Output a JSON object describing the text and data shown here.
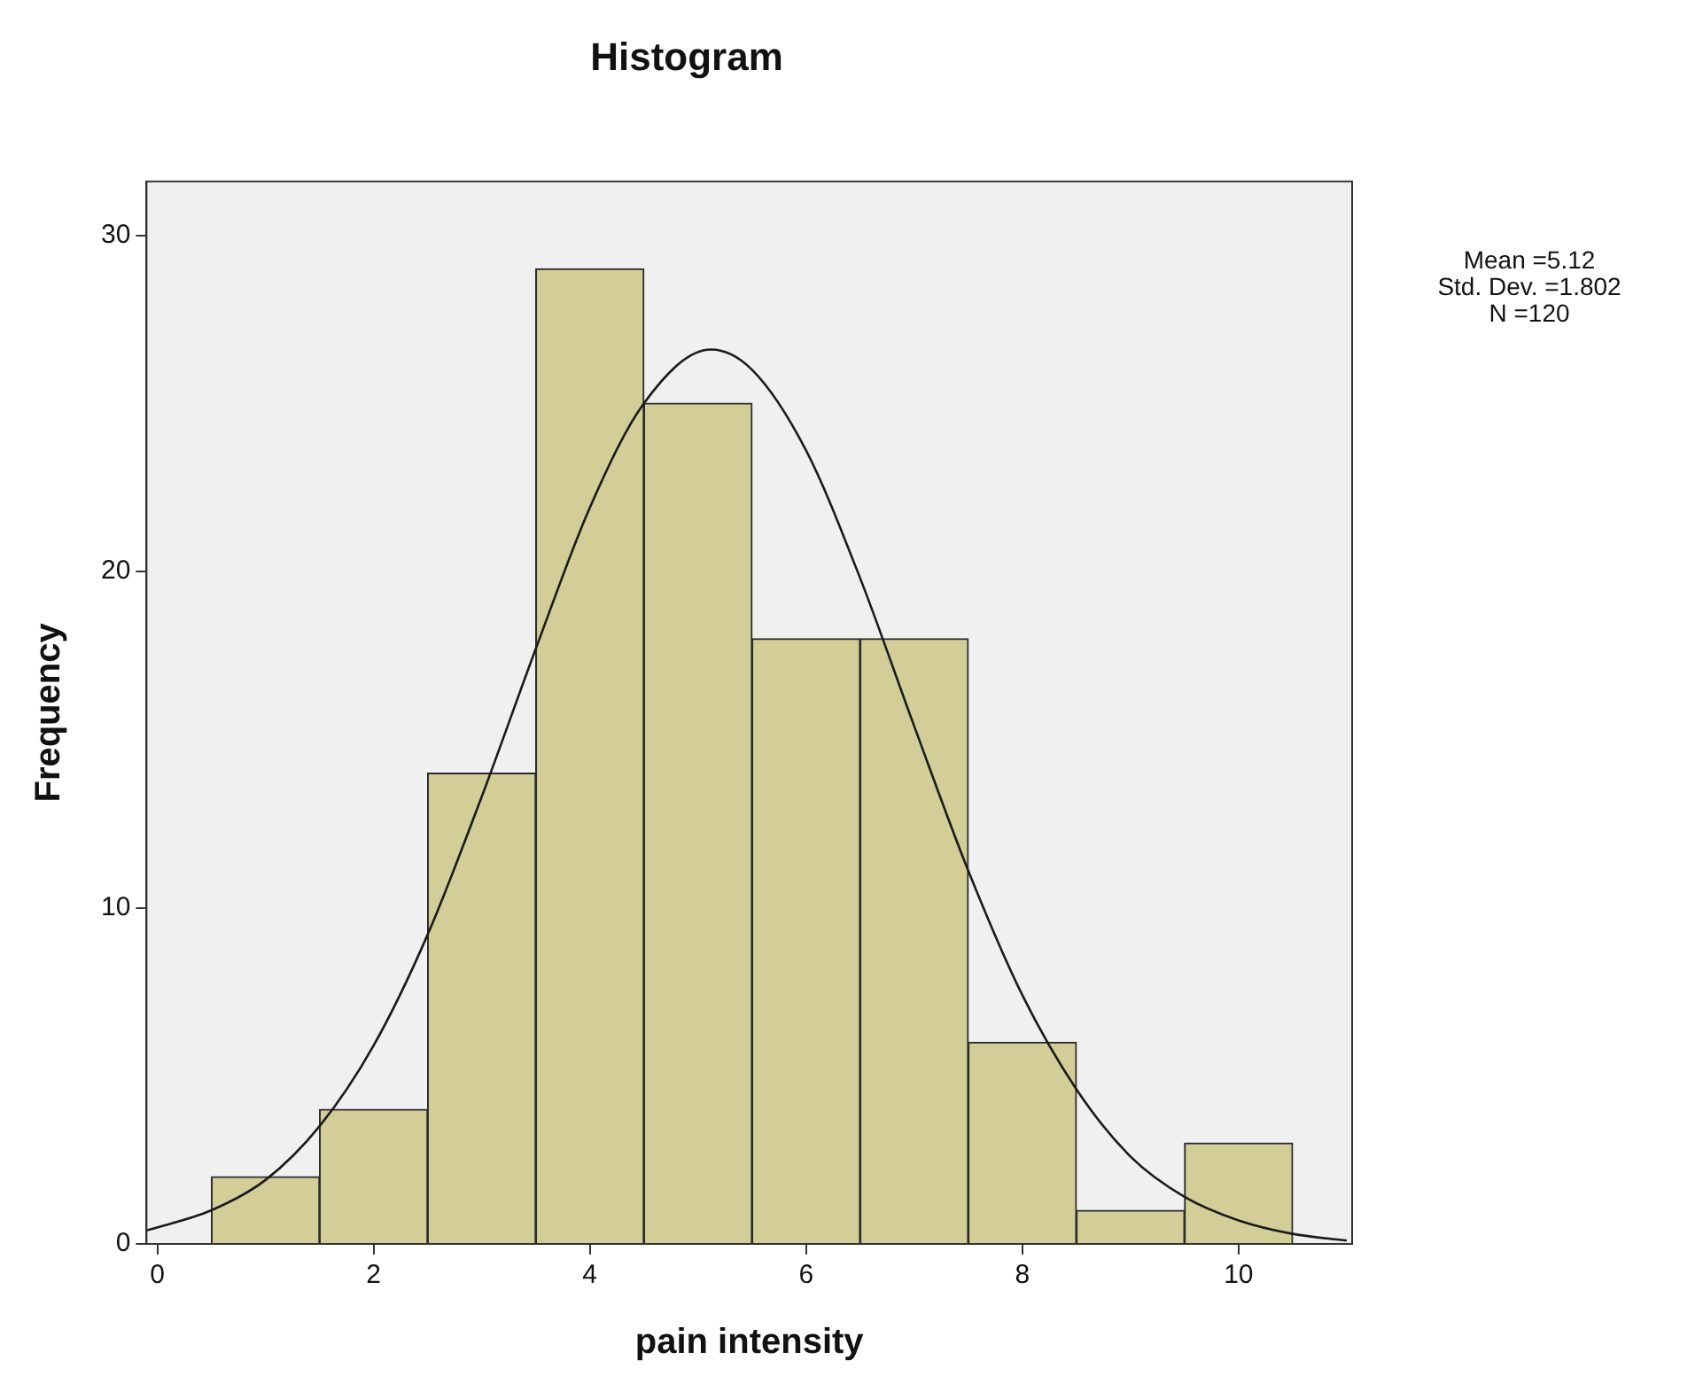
{
  "chart_data": {
    "type": "histogram",
    "title": "Histogram",
    "xlabel": "pain intensity",
    "ylabel": "Frequency",
    "bins": [
      0.5,
      1.5,
      2.5,
      3.5,
      4.5,
      5.5,
      6.5,
      7.5,
      8.5,
      9.5,
      10.5
    ],
    "values": [
      2,
      4,
      14,
      29,
      25,
      18,
      18,
      6,
      1,
      3
    ],
    "color": "#d3ce97",
    "series": [
      {
        "type": "line",
        "color": "#1a1a1a",
        "x": [
          -0.1,
          0.5,
          1,
          1.5,
          2,
          2.5,
          3,
          3.5,
          4,
          4.5,
          5.12,
          5.5,
          6,
          6.5,
          7,
          7.5,
          8,
          8.5,
          9,
          9.5,
          10,
          10.5,
          11
        ],
        "values": [
          0.4,
          1.0,
          1.9,
          3.5,
          5.9,
          9.2,
          13.3,
          17.7,
          21.9,
          25.0,
          26.6,
          26.0,
          23.6,
          19.8,
          15.4,
          11.1,
          7.4,
          4.6,
          2.6,
          1.4,
          0.7,
          0.3,
          0.1
        ]
      }
    ],
    "marker": "none",
    "xlim": [
      -0.1,
      11.05
    ],
    "ylim": [
      0,
      31.6
    ],
    "xticks": [
      0,
      2,
      4,
      6,
      8,
      10
    ],
    "yticks": [
      0,
      10,
      20,
      30
    ],
    "grid": false,
    "annotations": [
      "Mean =5.12",
      "Std. Dev. =1.802",
      "N =120"
    ]
  }
}
